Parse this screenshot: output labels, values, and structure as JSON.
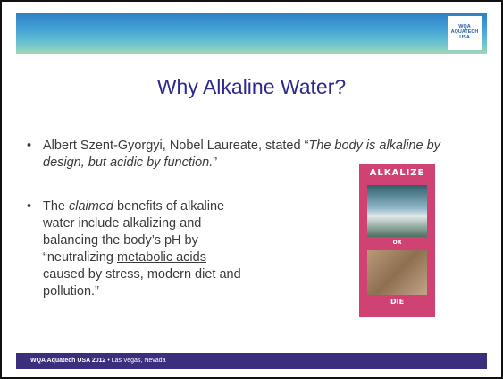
{
  "header": {
    "logo": [
      "WQA",
      "AQUATECH",
      "USA"
    ]
  },
  "title": "Why Alkaline Water?",
  "bullets": [
    {
      "parts": [
        "Albert Szent-Gyorgyi, Nobel Laureate, stated “",
        "The body is alkaline by design, but acidic by function.",
        "”"
      ]
    },
    {
      "parts": [
        "The ",
        "claimed",
        " benefits of alkaline water include alkalizing and balancing the body’s pH by “neutralizing ",
        "metabolic acids",
        " caused by stress, modern diet and pollution.”"
      ]
    }
  ],
  "book": {
    "top": "ALKALIZE",
    "middle": "OR",
    "bottom": "DIE"
  },
  "footer": {
    "bold": "WQA Aquatech USA 2012",
    "rest": " • Las Vegas, Nevada"
  }
}
